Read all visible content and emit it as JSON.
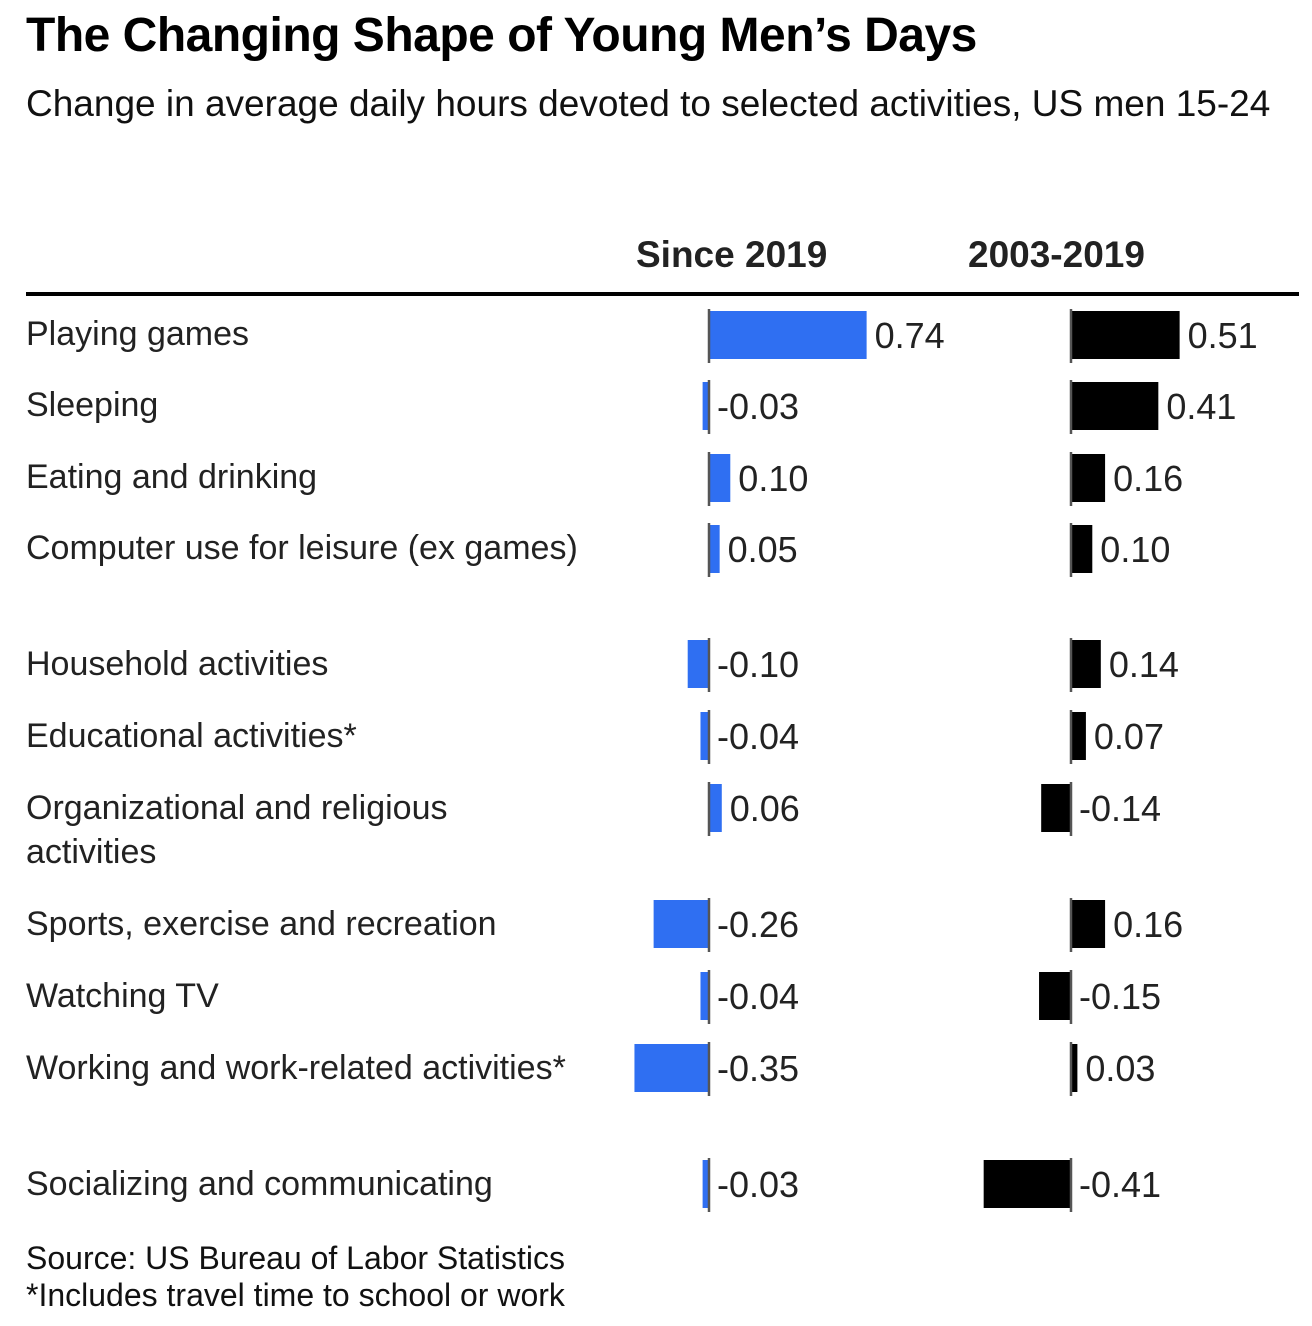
{
  "title": "The Changing Shape of Young Men’s Days",
  "subtitle": "Change in average daily hours devoted to selected activities, US men 15-24",
  "footer": {
    "source": "Source: US Bureau of Labor Statistics",
    "note": "*Includes travel time to school or work"
  },
  "colors": {
    "since_2019": "#2f6ff2",
    "2003_2019": "#000000",
    "axis": "#555555",
    "label_text": "#222222"
  },
  "chart_data": {
    "type": "bar",
    "orientation": "horizontal",
    "categories": [
      "Playing games",
      "Sleeping",
      "Eating and drinking",
      "Computer use for leisure (ex games)",
      "Household activities",
      "Educational activities*",
      "Organizational and religious activities",
      "Sports, exercise and recreation",
      "Watching TV",
      "Working and work-related activities*",
      "Socializing and communicating"
    ],
    "series": [
      {
        "name": "Since 2019",
        "color": "#2f6ff2",
        "values": [
          0.74,
          -0.03,
          0.1,
          0.05,
          -0.1,
          -0.04,
          0.06,
          -0.26,
          -0.04,
          -0.35,
          -0.03
        ],
        "labels": [
          "0.74",
          "-0.03",
          "0.10",
          "0.05",
          "-0.10",
          "-0.04",
          "0.06",
          "-0.26",
          "-0.04",
          "-0.35",
          "-0.03"
        ]
      },
      {
        "name": "2003-2019",
        "color": "#000000",
        "values": [
          0.51,
          0.41,
          0.16,
          0.1,
          0.14,
          0.07,
          -0.14,
          0.16,
          -0.15,
          0.03,
          -0.41
        ],
        "labels": [
          "0.51",
          "0.41",
          "0.16",
          "0.10",
          "0.14",
          "0.07",
          "-0.14",
          "0.16",
          "-0.15",
          "0.03",
          "-0.41"
        ]
      }
    ]
  }
}
